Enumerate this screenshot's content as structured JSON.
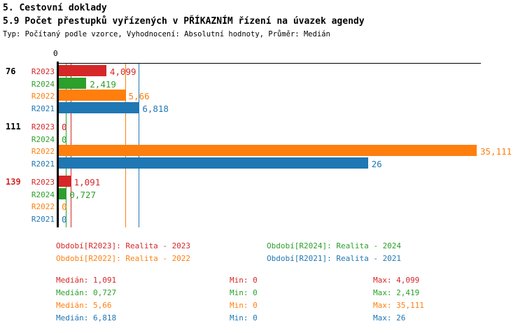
{
  "header": {
    "title": "5. Cestovní doklady",
    "subtitle": "5.9 Počet přestupků vyřízených v PŘÍKAZNÍM řízení na úvazek agendy",
    "meta": "Typ: Počítaný podle vzorce, Vyhodnocení: Absolutní hodnoty, Průměr: Medián"
  },
  "colors": {
    "R2023": "#d62728",
    "R2024": "#2ca02c",
    "R2022": "#ff7f0e",
    "R2021": "#1f77b4",
    "axis": "#000000",
    "group_label_highlight": "#d62728"
  },
  "chart_data": {
    "type": "bar",
    "orientation": "horizontal",
    "axis_zero_label": "0",
    "xlim": [
      0,
      35.111
    ],
    "grid": false,
    "series_order": [
      "R2023",
      "R2024",
      "R2022",
      "R2021"
    ],
    "groups": [
      {
        "label": "76",
        "label_color": "#000000",
        "bars": [
          {
            "series": "R2023",
            "value": 4.099,
            "value_label": "4,099"
          },
          {
            "series": "R2024",
            "value": 2.419,
            "value_label": "2,419"
          },
          {
            "series": "R2022",
            "value": 5.66,
            "value_label": "5,66"
          },
          {
            "series": "R2021",
            "value": 6.818,
            "value_label": "6,818"
          }
        ]
      },
      {
        "label": "111",
        "label_color": "#000000",
        "bars": [
          {
            "series": "R2023",
            "value": 0,
            "value_label": "0"
          },
          {
            "series": "R2024",
            "value": 0,
            "value_label": "0"
          },
          {
            "series": "R2022",
            "value": 35.111,
            "value_label": "35,111"
          },
          {
            "series": "R2021",
            "value": 26,
            "value_label": "26"
          }
        ]
      },
      {
        "label": "139",
        "label_color": "#d62728",
        "bars": [
          {
            "series": "R2023",
            "value": 1.091,
            "value_label": "1,091"
          },
          {
            "series": "R2024",
            "value": 0.727,
            "value_label": "0,727"
          },
          {
            "series": "R2022",
            "value": 0,
            "value_label": "0"
          },
          {
            "series": "R2021",
            "value": 0,
            "value_label": "0"
          }
        ]
      }
    ],
    "median_lines": [
      {
        "series": "R2024",
        "value": 0.727
      },
      {
        "series": "R2023",
        "value": 1.091
      },
      {
        "series": "R2022",
        "value": 5.66
      },
      {
        "series": "R2021",
        "value": 6.818
      }
    ]
  },
  "legend": {
    "items": [
      {
        "series": "R2023",
        "label": "Období[R2023]: Realita - 2023"
      },
      {
        "series": "R2024",
        "label": "Období[R2024]: Realita - 2024"
      },
      {
        "series": "R2022",
        "label": "Období[R2022]: Realita - 2022"
      },
      {
        "series": "R2021",
        "label": "Období[R2021]: Realita - 2021"
      }
    ]
  },
  "stats": {
    "rows": [
      {
        "series": "R2023",
        "median": "Medián: 1,091",
        "min": "Min: 0",
        "max": "Max: 4,099"
      },
      {
        "series": "R2024",
        "median": "Medián: 0,727",
        "min": "Min: 0",
        "max": "Max: 2,419"
      },
      {
        "series": "R2022",
        "median": "Medián: 5,66",
        "min": "Min: 0",
        "max": "Max: 35,111"
      },
      {
        "series": "R2021",
        "median": "Medián: 6,818",
        "min": "Min: 0",
        "max": "Max: 26"
      }
    ]
  }
}
